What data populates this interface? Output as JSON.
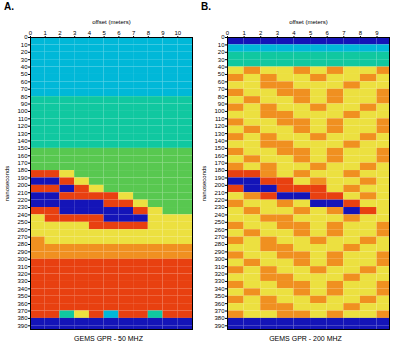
{
  "chart_data": [
    {
      "type": "heatmap",
      "title": "A.",
      "caption": "GEMS GPR - 50 MHZ",
      "x_label": "offset (meters)",
      "y_label": "nanoseconds",
      "xlim": [
        0,
        11
      ],
      "ylim": [
        0,
        395
      ],
      "xticks": [
        0,
        1,
        2,
        3,
        4,
        5,
        6,
        7,
        8,
        9,
        10
      ],
      "yticks": [
        0,
        10,
        20,
        30,
        40,
        50,
        60,
        70,
        80,
        90,
        100,
        110,
        120,
        130,
        140,
        150,
        160,
        170,
        180,
        190,
        200,
        210,
        220,
        230,
        240,
        250,
        260,
        270,
        280,
        290,
        300,
        310,
        320,
        330,
        340,
        350,
        360,
        370,
        380,
        390
      ],
      "zlim": [
        -3,
        3
      ],
      "x_bins": [
        0,
        1,
        2,
        3,
        4,
        5,
        6,
        7,
        8,
        9,
        10,
        11
      ],
      "y_bins": [
        0,
        10,
        20,
        30,
        40,
        50,
        60,
        70,
        80,
        90,
        100,
        110,
        120,
        130,
        140,
        150,
        160,
        170,
        180,
        190,
        200,
        210,
        220,
        230,
        240,
        250,
        260,
        270,
        280,
        290,
        300,
        310,
        320,
        330,
        340,
        350,
        360,
        370,
        380,
        390,
        395
      ],
      "values": [
        [
          -2,
          -2,
          -2,
          -2,
          -2,
          -2,
          -2,
          -2,
          -2,
          -2,
          -2
        ],
        [
          -2,
          -2,
          -2,
          -2,
          -2,
          -2,
          -2,
          -2,
          -2,
          -2,
          -2
        ],
        [
          -2,
          -2,
          -2,
          -2,
          -2,
          -2,
          -2,
          -2,
          -2,
          -2,
          -2
        ],
        [
          -2,
          -2,
          -2,
          -2,
          -2,
          -2,
          -2,
          -2,
          -2,
          -2,
          -2
        ],
        [
          -2,
          -2,
          -2,
          -2,
          -2,
          -2,
          -2,
          -2,
          -2,
          -2,
          -2
        ],
        [
          -2,
          -2,
          -2,
          -2,
          -2,
          -2,
          -2,
          -2,
          -2,
          -2,
          -2
        ],
        [
          -2,
          -2,
          -2,
          -2,
          -2,
          -2,
          -2,
          -2,
          -2,
          -2,
          -2
        ],
        [
          -2,
          -2,
          -2,
          -2,
          -2,
          -2,
          -2,
          -2,
          -2,
          -2,
          -2
        ],
        [
          -1,
          -1,
          -1,
          -1,
          -1,
          -1,
          -1,
          -1,
          -1,
          -1,
          -1
        ],
        [
          -1,
          -1,
          -1,
          -1,
          -1,
          -1,
          -1,
          -1,
          -1,
          -1,
          -1
        ],
        [
          -1,
          -1,
          -1,
          -1,
          -1,
          -1,
          -1,
          -1,
          -1,
          -1,
          -1
        ],
        [
          -1,
          -1,
          -1,
          -1,
          -1,
          -1,
          -1,
          -1,
          -1,
          -1,
          -1
        ],
        [
          -1,
          -1,
          -1,
          -1,
          -1,
          -1,
          -1,
          -1,
          -1,
          -1,
          -1
        ],
        [
          -1,
          -1,
          -1,
          -1,
          -1,
          -1,
          -1,
          -1,
          -1,
          -1,
          -1
        ],
        [
          -1,
          -1,
          -1,
          -1,
          -1,
          -1,
          -1,
          -1,
          -1,
          -1,
          -1
        ],
        [
          0,
          0,
          0,
          0,
          0,
          0,
          0,
          0,
          0,
          0,
          0
        ],
        [
          0,
          0,
          0,
          0,
          0,
          0,
          0,
          0,
          0,
          0,
          0
        ],
        [
          0,
          0,
          0,
          0,
          0,
          0,
          0,
          0,
          0,
          0,
          0
        ],
        [
          3,
          3,
          1,
          0,
          0,
          0,
          0,
          0,
          0,
          0,
          0
        ],
        [
          -3,
          -3,
          3,
          1,
          0,
          0,
          0,
          0,
          0,
          0,
          0
        ],
        [
          3,
          3,
          -3,
          3,
          1,
          0,
          0,
          0,
          0,
          0,
          0
        ],
        [
          -3,
          -3,
          3,
          3,
          3,
          3,
          1,
          0,
          0,
          0,
          0
        ],
        [
          -3,
          -3,
          -3,
          -3,
          -3,
          3,
          3,
          1,
          0,
          0,
          0
        ],
        [
          3,
          3,
          -3,
          -3,
          -3,
          -3,
          -3,
          3,
          1,
          0,
          0
        ],
        [
          1,
          3,
          3,
          3,
          3,
          -3,
          -3,
          -3,
          1,
          1,
          1
        ],
        [
          1,
          1,
          1,
          1,
          3,
          3,
          3,
          3,
          1,
          1,
          1
        ],
        [
          1,
          1,
          1,
          1,
          1,
          1,
          1,
          1,
          1,
          1,
          1
        ],
        [
          2,
          1,
          1,
          1,
          1,
          1,
          1,
          1,
          1,
          1,
          1
        ],
        [
          2,
          2,
          2,
          2,
          2,
          2,
          2,
          2,
          2,
          2,
          2
        ],
        [
          2,
          2,
          2,
          2,
          2,
          2,
          2,
          2,
          2,
          2,
          2
        ],
        [
          3,
          3,
          3,
          3,
          3,
          3,
          3,
          3,
          3,
          3,
          3
        ],
        [
          3,
          3,
          3,
          3,
          3,
          3,
          3,
          3,
          3,
          3,
          3
        ],
        [
          3,
          3,
          3,
          3,
          3,
          3,
          3,
          3,
          3,
          3,
          3
        ],
        [
          3,
          3,
          3,
          3,
          3,
          3,
          3,
          3,
          3,
          3,
          3
        ],
        [
          3,
          3,
          3,
          3,
          3,
          3,
          3,
          3,
          3,
          3,
          3
        ],
        [
          3,
          3,
          3,
          3,
          3,
          3,
          3,
          3,
          3,
          3,
          3
        ],
        [
          3,
          3,
          3,
          3,
          3,
          3,
          3,
          3,
          3,
          3,
          3
        ],
        [
          3,
          3,
          -1,
          1,
          3,
          -2,
          3,
          3,
          -1,
          3,
          3
        ],
        [
          -3,
          -3,
          -3,
          -3,
          -3,
          -3,
          -3,
          -3,
          -3,
          -3,
          -3
        ],
        [
          -3,
          -3,
          -3,
          -3,
          -3,
          -3,
          -3,
          -3,
          -3,
          -3,
          -3
        ]
      ]
    },
    {
      "type": "heatmap",
      "title": "B.",
      "caption": "GEMS GPR - 200 MHZ",
      "x_label": "offset (meters)",
      "y_label": "nanoseconds",
      "xlim": [
        0,
        9.75
      ],
      "ylim": [
        0,
        395
      ],
      "xticks": [
        0,
        1,
        2,
        3,
        4,
        5,
        6,
        7,
        8,
        9
      ],
      "yticks": [
        0,
        10,
        20,
        30,
        40,
        50,
        60,
        70,
        80,
        90,
        100,
        110,
        120,
        130,
        140,
        150,
        160,
        170,
        180,
        190,
        200,
        210,
        220,
        230,
        240,
        250,
        260,
        270,
        280,
        290,
        300,
        310,
        320,
        330,
        340,
        350,
        360,
        370,
        380,
        390
      ],
      "zlim": [
        -3,
        3
      ],
      "x_bins": [
        0,
        1,
        2,
        3,
        4,
        5,
        6,
        7,
        8,
        9,
        9.75
      ],
      "y_bins": [
        0,
        10,
        20,
        30,
        40,
        50,
        60,
        70,
        80,
        90,
        100,
        110,
        120,
        130,
        140,
        150,
        160,
        170,
        180,
        190,
        200,
        210,
        220,
        230,
        240,
        250,
        260,
        270,
        280,
        290,
        300,
        310,
        320,
        330,
        340,
        350,
        360,
        370,
        380,
        390,
        395
      ],
      "values": [
        [
          -3,
          -3,
          -3,
          -3,
          -3,
          -3,
          -3,
          -3,
          -3,
          -3
        ],
        [
          -2,
          -2,
          -2,
          -2,
          -2,
          -2,
          -2,
          -2,
          -2,
          -2
        ],
        [
          -1,
          -1,
          -1,
          -1,
          -1,
          -1,
          -1,
          -1,
          -1,
          -1
        ],
        [
          -1,
          -1,
          -1,
          -1,
          -1,
          -1,
          -1,
          -1,
          -1,
          -1
        ],
        [
          1,
          2,
          1,
          1,
          2,
          1,
          2,
          1,
          1,
          2
        ],
        [
          2,
          1,
          2,
          1,
          1,
          2,
          1,
          1,
          2,
          1
        ],
        [
          1,
          1,
          2,
          2,
          1,
          1,
          1,
          2,
          1,
          1
        ],
        [
          2,
          1,
          1,
          2,
          2,
          1,
          2,
          1,
          1,
          2
        ],
        [
          1,
          2,
          1,
          1,
          2,
          1,
          2,
          1,
          1,
          2
        ],
        [
          2,
          1,
          2,
          1,
          1,
          2,
          1,
          1,
          2,
          1
        ],
        [
          1,
          1,
          2,
          2,
          1,
          1,
          1,
          2,
          1,
          1
        ],
        [
          2,
          1,
          1,
          2,
          2,
          1,
          2,
          1,
          1,
          2
        ],
        [
          1,
          2,
          1,
          1,
          2,
          1,
          2,
          1,
          1,
          2
        ],
        [
          2,
          1,
          2,
          1,
          1,
          2,
          1,
          1,
          2,
          1
        ],
        [
          1,
          1,
          2,
          2,
          1,
          1,
          1,
          2,
          1,
          1
        ],
        [
          2,
          1,
          1,
          2,
          2,
          1,
          2,
          1,
          1,
          2
        ],
        [
          1,
          2,
          1,
          1,
          2,
          1,
          2,
          1,
          1,
          2
        ],
        [
          2,
          1,
          2,
          1,
          1,
          2,
          1,
          1,
          2,
          1
        ],
        [
          3,
          3,
          2,
          1,
          2,
          1,
          1,
          2,
          1,
          1
        ],
        [
          -3,
          -3,
          3,
          3,
          1,
          2,
          1,
          1,
          2,
          1
        ],
        [
          3,
          -3,
          -3,
          3,
          3,
          3,
          1,
          2,
          1,
          1
        ],
        [
          1,
          2,
          3,
          -3,
          -3,
          3,
          3,
          1,
          2,
          1
        ],
        [
          2,
          1,
          1,
          2,
          1,
          -3,
          -3,
          3,
          1,
          1
        ],
        [
          1,
          2,
          1,
          1,
          2,
          1,
          2,
          -3,
          3,
          1
        ],
        [
          1,
          1,
          2,
          2,
          1,
          1,
          1,
          2,
          1,
          1
        ],
        [
          2,
          1,
          1,
          2,
          2,
          1,
          2,
          1,
          1,
          2
        ],
        [
          1,
          2,
          1,
          1,
          2,
          1,
          2,
          1,
          1,
          2
        ],
        [
          2,
          1,
          2,
          1,
          1,
          2,
          1,
          1,
          2,
          1
        ],
        [
          1,
          1,
          2,
          2,
          1,
          1,
          1,
          2,
          1,
          1
        ],
        [
          2,
          1,
          1,
          2,
          2,
          1,
          2,
          1,
          1,
          2
        ],
        [
          1,
          2,
          1,
          1,
          2,
          1,
          2,
          1,
          1,
          2
        ],
        [
          2,
          1,
          2,
          1,
          1,
          2,
          1,
          1,
          2,
          1
        ],
        [
          1,
          1,
          2,
          2,
          1,
          1,
          1,
          2,
          1,
          1
        ],
        [
          2,
          1,
          1,
          2,
          2,
          1,
          2,
          1,
          1,
          2
        ],
        [
          1,
          2,
          1,
          1,
          2,
          1,
          2,
          1,
          1,
          2
        ],
        [
          2,
          1,
          2,
          1,
          1,
          2,
          1,
          1,
          2,
          1
        ],
        [
          1,
          1,
          2,
          2,
          1,
          1,
          1,
          2,
          1,
          1
        ],
        [
          2,
          1,
          1,
          2,
          2,
          1,
          2,
          1,
          1,
          2
        ],
        [
          -3,
          -3,
          -3,
          -3,
          -3,
          -3,
          -3,
          -3,
          -3,
          -3
        ],
        [
          -3,
          -3,
          -3,
          -3,
          -3,
          -3,
          -3,
          -3,
          -3,
          -3
        ]
      ]
    }
  ]
}
